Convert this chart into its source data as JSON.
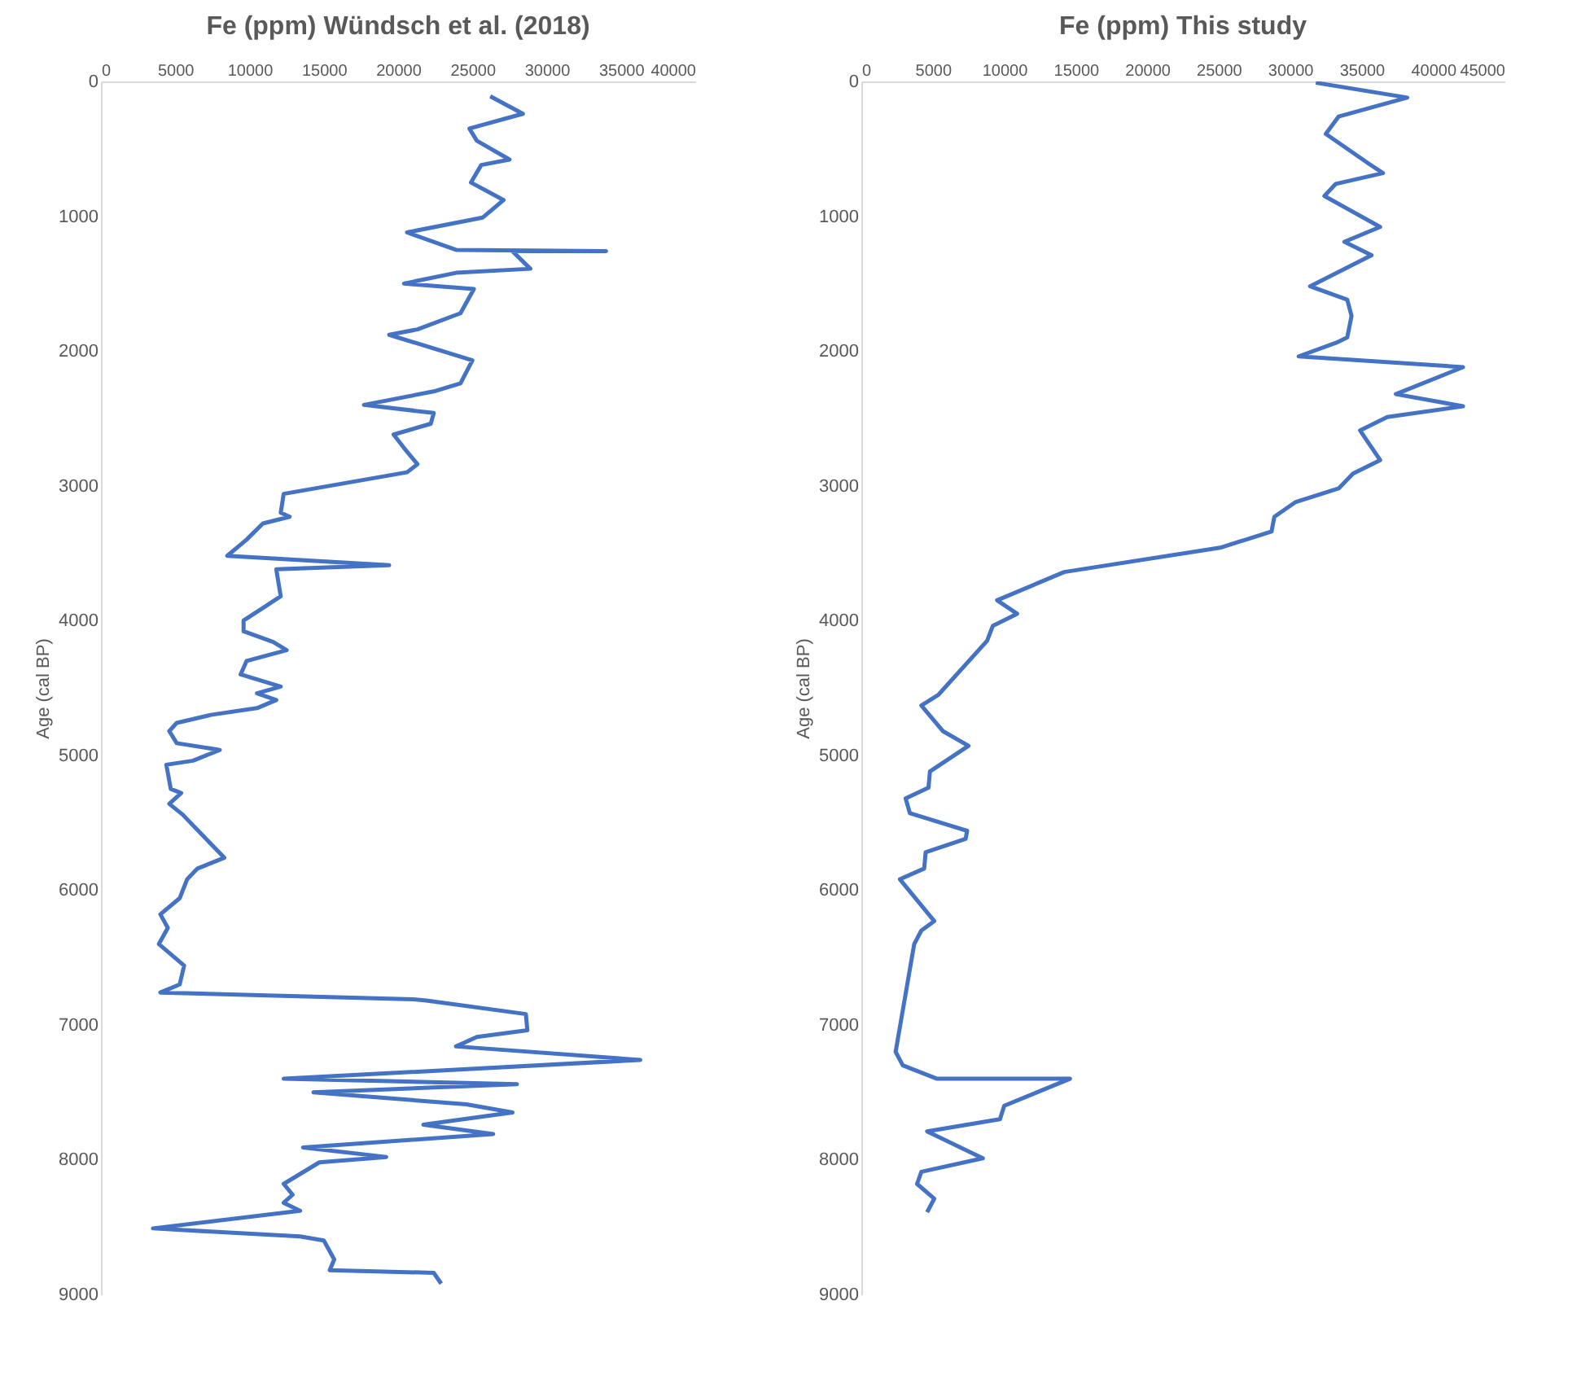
{
  "chart_data": [
    {
      "type": "line",
      "title": "Fe (ppm) Wündsch et al. (2018)",
      "ylabel": "Age (cal BP)",
      "xlim": [
        0,
        40000
      ],
      "xticks": [
        0,
        5000,
        10000,
        15000,
        20000,
        25000,
        30000,
        35000,
        40000
      ],
      "ylim": [
        9000,
        0
      ],
      "yticks": [
        0,
        1000,
        2000,
        3000,
        4000,
        5000,
        6000,
        7000,
        8000,
        9000
      ],
      "grid": false,
      "series": [
        {
          "color": "#4472c4",
          "x": [
            26200,
            28400,
            24800,
            25300,
            27500,
            25600,
            24900,
            27100,
            25700,
            20600,
            23900,
            34000,
            27700,
            28900,
            23900,
            20400,
            25100,
            24200,
            21300,
            19400,
            25000,
            24200,
            22400,
            17700,
            22400,
            22200,
            19700,
            20400,
            21300,
            20600,
            12300,
            12100,
            12700,
            10900,
            9800,
            8500,
            19400,
            11800,
            12100,
            11000,
            9600,
            9600,
            11600,
            12500,
            9800,
            9400,
            12100,
            10500,
            11800,
            10500,
            7400,
            5100,
            4600,
            5100,
            8000,
            6200,
            4400,
            4700,
            5400,
            4600,
            5500,
            8300,
            6500,
            5800,
            5300,
            4000,
            4500,
            3900,
            5600,
            5300,
            4000,
            21000,
            21900,
            28600,
            28700,
            25300,
            23900,
            36300,
            12300,
            28000,
            14300,
            24600,
            27700,
            21700,
            26400,
            13600,
            19200,
            14700,
            12300,
            12900,
            12300,
            13400,
            3500,
            13400,
            15000,
            15700,
            15400,
            22400,
            22900
          ],
          "values": [
            110,
            240,
            350,
            440,
            580,
            620,
            750,
            880,
            1010,
            1120,
            1250,
            1260,
            1260,
            1390,
            1420,
            1500,
            1540,
            1720,
            1840,
            1880,
            2070,
            2240,
            2300,
            2400,
            2460,
            2540,
            2620,
            2720,
            2840,
            2900,
            3060,
            3200,
            3230,
            3280,
            3400,
            3520,
            3590,
            3620,
            3820,
            3900,
            4000,
            4080,
            4160,
            4220,
            4300,
            4400,
            4490,
            4540,
            4590,
            4650,
            4700,
            4760,
            4820,
            4910,
            4960,
            5040,
            5070,
            5250,
            5280,
            5360,
            5440,
            5760,
            5840,
            5920,
            6060,
            6180,
            6280,
            6400,
            6560,
            6700,
            6760,
            6810,
            6820,
            6920,
            7040,
            7090,
            7160,
            7260,
            7400,
            7440,
            7500,
            7590,
            7650,
            7740,
            7810,
            7910,
            7980,
            8020,
            8180,
            8260,
            8320,
            8380,
            8510,
            8570,
            8600,
            8740,
            8820,
            8840,
            8920
          ]
        }
      ]
    },
    {
      "type": "line",
      "title": "Fe (ppm) This study",
      "ylabel": "Age (cal BP)",
      "xlim": [
        0,
        45000
      ],
      "xticks": [
        0,
        5000,
        10000,
        15000,
        20000,
        25000,
        30000,
        35000,
        40000,
        45000
      ],
      "ylim": [
        9000,
        0
      ],
      "yticks": [
        0,
        1000,
        2000,
        3000,
        4000,
        5000,
        6000,
        7000,
        8000,
        9000
      ],
      "grid": false,
      "series": [
        {
          "color": "#4472c4",
          "x": [
            31800,
            38200,
            33400,
            32500,
            35500,
            36500,
            33200,
            32400,
            36300,
            33800,
            35700,
            31400,
            34000,
            34300,
            34000,
            33200,
            30600,
            42100,
            37400,
            42100,
            36800,
            34900,
            36300,
            34400,
            33400,
            30400,
            28900,
            28700,
            25100,
            14200,
            9500,
            10900,
            9200,
            8800,
            5400,
            4200,
            5700,
            7500,
            4800,
            4700,
            3100,
            3400,
            7400,
            7300,
            4500,
            4400,
            2700,
            5100,
            4200,
            3700,
            2400,
            2900,
            5300,
            14600,
            10000,
            9700,
            4600,
            8500,
            4200,
            3900,
            5100,
            4600
          ],
          "values": [
            10,
            120,
            260,
            390,
            610,
            680,
            760,
            850,
            1080,
            1190,
            1290,
            1520,
            1620,
            1740,
            1900,
            1940,
            2040,
            2120,
            2320,
            2410,
            2490,
            2590,
            2810,
            2910,
            3020,
            3120,
            3230,
            3340,
            3460,
            3640,
            3850,
            3950,
            4040,
            4150,
            4550,
            4630,
            4820,
            4930,
            5120,
            5240,
            5320,
            5430,
            5560,
            5620,
            5720,
            5840,
            5920,
            6230,
            6300,
            6400,
            7200,
            7300,
            7400,
            7400,
            7600,
            7700,
            7790,
            7990,
            8090,
            8180,
            8290,
            8390
          ]
        }
      ]
    }
  ]
}
